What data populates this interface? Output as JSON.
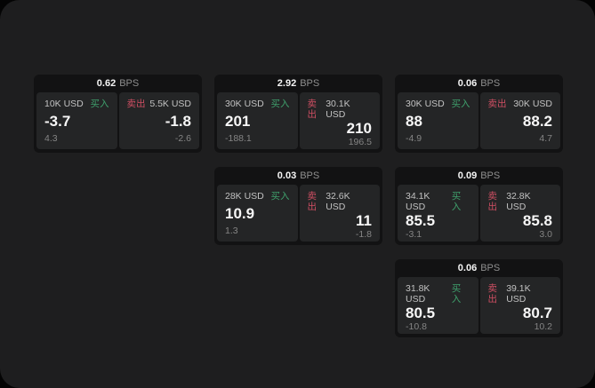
{
  "colors": {
    "page_background": "#040404",
    "surface_background": "#1e1e1f",
    "card_background": "#121213",
    "panel_background": "#242526",
    "buy_green": "#3fa06c",
    "sell_red": "#cf4f63",
    "value_text": "#f7f7f7",
    "muted_text": "#858585"
  },
  "labels": {
    "bps_unit": "BPS",
    "buy": "买入",
    "sell": "卖出"
  },
  "cards": [
    {
      "bps": "0.62",
      "buy": {
        "size": "10K USD",
        "value": "-3.7",
        "delta": "4.3"
      },
      "sell": {
        "size": "5.5K USD",
        "value": "-1.8",
        "delta": "-2.6"
      }
    },
    {
      "bps": "2.92",
      "buy": {
        "size": "30K USD",
        "value": "201",
        "delta": "-188.1"
      },
      "sell": {
        "size": "30.1K USD",
        "value": "210",
        "delta": "196.5"
      }
    },
    {
      "bps": "0.06",
      "buy": {
        "size": "30K USD",
        "value": "88",
        "delta": "-4.9"
      },
      "sell": {
        "size": "30K USD",
        "value": "88.2",
        "delta": "4.7"
      }
    },
    {
      "bps": "0.03",
      "buy": {
        "size": "28K USD",
        "value": "10.9",
        "delta": "1.3"
      },
      "sell": {
        "size": "32.6K USD",
        "value": "11",
        "delta": "-1.8"
      }
    },
    {
      "bps": "0.09",
      "buy": {
        "size": "34.1K USD",
        "value": "85.5",
        "delta": "-3.1"
      },
      "sell": {
        "size": "32.8K USD",
        "value": "85.8",
        "delta": "3.0"
      }
    },
    {
      "bps": "0.06",
      "buy": {
        "size": "31.8K USD",
        "value": "80.5",
        "delta": "-10.8"
      },
      "sell": {
        "size": "39.1K USD",
        "value": "80.7",
        "delta": "10.2"
      }
    }
  ]
}
